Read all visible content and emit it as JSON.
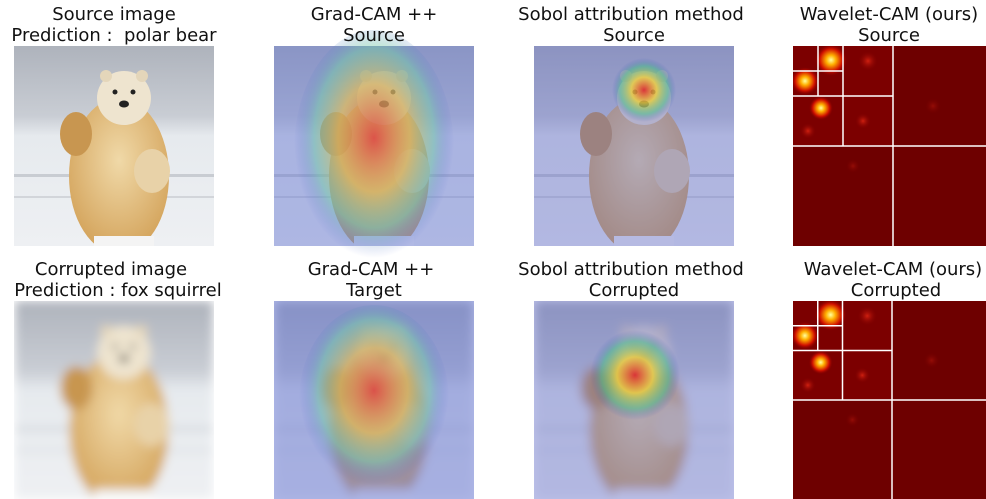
{
  "panels": [
    {
      "title": [
        "Source image",
        "Prediction :  polar bear"
      ]
    },
    {
      "title": [
        "Grad-CAM ++",
        "Source"
      ]
    },
    {
      "title": [
        "Sobol attribution method",
        "Source"
      ]
    },
    {
      "title": [
        "Wavelet-CAM (ours)",
        "Source"
      ]
    },
    {
      "title": [
        "Corrupted image",
        "Prediction : fox squirrel"
      ]
    },
    {
      "title": [
        "Grad-CAM ++",
        "Target"
      ]
    },
    {
      "title": [
        "Sobol attribution method",
        "Corrupted"
      ]
    },
    {
      "title": [
        "Wavelet-CAM (ours)",
        "Corrupted"
      ]
    }
  ]
}
